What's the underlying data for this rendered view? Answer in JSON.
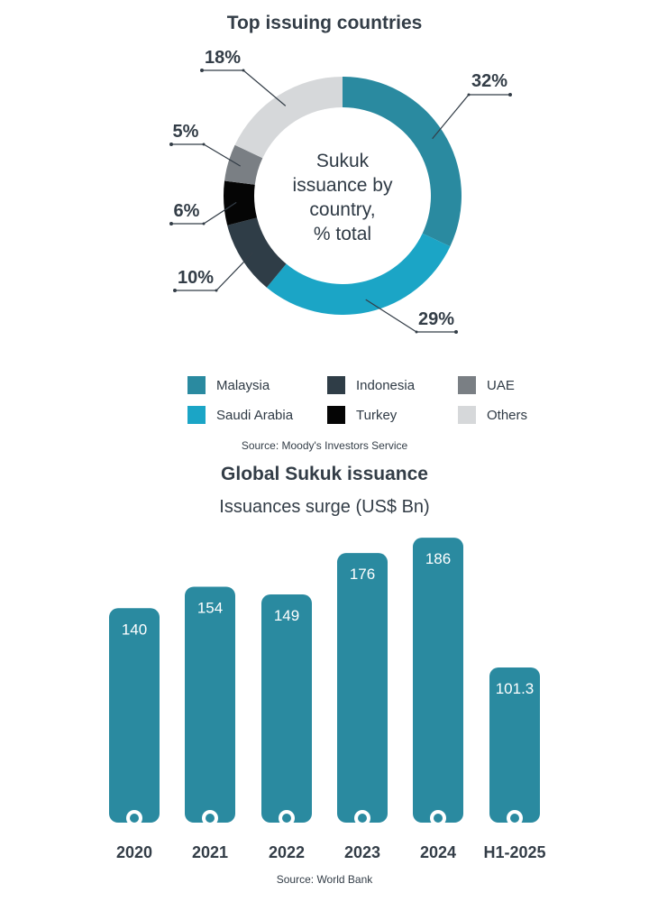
{
  "donut": {
    "title": "Top issuing countries",
    "center_lines": [
      "Sukuk",
      "issuance by",
      "country,",
      "% total"
    ],
    "source": "Source: Moody's Investors Service"
  },
  "bars": {
    "title": "Global Sukuk issuance",
    "subtitle": "Issuances surge (US$ Bn)",
    "source": "Source: World Bank"
  },
  "chart_data": [
    {
      "type": "pie",
      "variant": "donut",
      "title": "Top issuing countries",
      "categories": [
        "Malaysia",
        "Saudi Arabia",
        "Indonesia",
        "Turkey",
        "UAE",
        "Others"
      ],
      "values": [
        32,
        29,
        10,
        6,
        5,
        18
      ],
      "labels": [
        "32%",
        "29%",
        "10%",
        "6%",
        "5%",
        "18%"
      ],
      "colors": [
        "#2a8aa0",
        "#1ba5c6",
        "#2f3d47",
        "#050505",
        "#7a7f84",
        "#d6d8da"
      ],
      "legend_position": "bottom"
    },
    {
      "type": "bar",
      "title": "Global Sukuk issuance",
      "subtitle": "Issuances surge (US$ Bn)",
      "categories": [
        "2020",
        "2021",
        "2022",
        "2023",
        "2024",
        "H1-2025"
      ],
      "values": [
        140,
        154,
        149,
        176,
        186,
        101.3
      ],
      "value_labels": [
        "140",
        "154",
        "149",
        "176",
        "186",
        "101.3"
      ],
      "color": "#2a8aa0",
      "grid": false
    }
  ]
}
